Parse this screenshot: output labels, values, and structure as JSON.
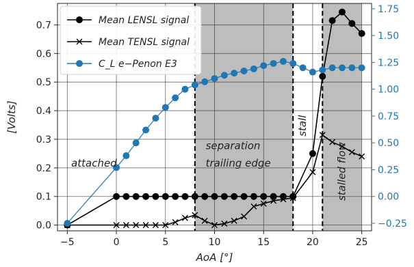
{
  "chart_data": {
    "type": "line",
    "xlabel": "AoA [°]",
    "ylabel": "[Volts]",
    "xlim": [
      -6,
      26
    ],
    "ylim": [
      -0.02,
      0.775
    ],
    "ylim_right": [
      -0.32,
      1.8
    ],
    "xticks": [
      -5,
      0,
      5,
      10,
      15,
      20,
      25
    ],
    "yticks": [
      0.0,
      0.1,
      0.2,
      0.3,
      0.4,
      0.5,
      0.6,
      0.7
    ],
    "yticks_right": [
      -0.25,
      0.0,
      0.25,
      0.5,
      0.75,
      1.0,
      1.25,
      1.5,
      1.75
    ],
    "ytick_labels": [
      "0.0",
      "0.1",
      "0.2",
      "0.3",
      "0.4",
      "0.5",
      "0.6",
      "0.7"
    ],
    "ytick_labels_right": [
      "−0.25",
      "0.00",
      "0.25",
      "0.50",
      "0.75",
      "1.00",
      "1.25",
      "1.50",
      "1.75"
    ],
    "grid": true,
    "legend_position": "top-left",
    "regions": [
      {
        "x0": 8,
        "x1": 18,
        "color": "#bdbdbd"
      },
      {
        "x0": 21,
        "x1": 25,
        "color": "#bdbdbd"
      }
    ],
    "vlines": [
      8,
      18,
      21
    ],
    "annotations": [
      {
        "id": "attached",
        "text": "attached",
        "x": -4.6,
        "y": 0.205,
        "rotate": 0
      },
      {
        "id": "sep1",
        "text": "separation",
        "x": 9.1,
        "y": 0.265,
        "rotate": 0
      },
      {
        "id": "sep2",
        "text": "trailing edge",
        "x": 9.1,
        "y": 0.205,
        "rotate": 0
      },
      {
        "id": "stall",
        "text": "stall",
        "x": 19.3,
        "y": 0.31,
        "rotate": -90
      },
      {
        "id": "stalled",
        "text": "stalled flow",
        "x": 23.3,
        "y": 0.085,
        "rotate": -90
      }
    ],
    "series": [
      {
        "name": "Mean LENSL signal",
        "axis": "left",
        "color": "#000000",
        "marker": "circle",
        "x": [
          -5,
          0,
          1,
          2,
          3,
          4,
          5,
          6,
          7,
          8,
          9,
          10,
          11,
          12,
          13,
          14,
          15,
          16,
          17,
          18,
          20,
          21,
          22,
          23,
          24,
          25
        ],
        "y": [
          0.0,
          0.1,
          0.1,
          0.1,
          0.1,
          0.1,
          0.1,
          0.1,
          0.1,
          0.1,
          0.1,
          0.1,
          0.1,
          0.1,
          0.1,
          0.1,
          0.1,
          0.1,
          0.1,
          0.1,
          0.25,
          0.52,
          0.715,
          0.745,
          0.705,
          0.67
        ]
      },
      {
        "name": "Mean TENSL signal",
        "axis": "left",
        "color": "#000000",
        "marker": "x",
        "x": [
          -5,
          0,
          1,
          2,
          3,
          4,
          5,
          6,
          7,
          8,
          9,
          10,
          11,
          12,
          13,
          14,
          15,
          16,
          17,
          18,
          20,
          21,
          22,
          23,
          24,
          25
        ],
        "y": [
          0.0,
          0.0,
          0.0,
          0.0,
          0.0,
          0.0,
          0.0,
          0.01,
          0.025,
          0.035,
          0.015,
          0.0,
          0.005,
          0.015,
          0.03,
          0.065,
          0.075,
          0.085,
          0.09,
          0.095,
          0.185,
          0.315,
          0.29,
          0.275,
          0.255,
          0.24
        ]
      },
      {
        "name": "C_L e−Penon E3",
        "axis": "right",
        "color": "#1f77b4",
        "marker": "circle",
        "x": [
          -5,
          0,
          1,
          2,
          3,
          4,
          5,
          6,
          7,
          8,
          9,
          10,
          11,
          12,
          13,
          14,
          15,
          16,
          17,
          18,
          19,
          20,
          21,
          22,
          23,
          24,
          25
        ],
        "y": [
          -0.25,
          0.27,
          0.38,
          0.5,
          0.62,
          0.73,
          0.83,
          0.92,
          1.0,
          1.04,
          1.07,
          1.1,
          1.13,
          1.15,
          1.17,
          1.19,
          1.22,
          1.24,
          1.26,
          1.24,
          1.2,
          1.16,
          1.18,
          1.2,
          1.2,
          1.2,
          1.2
        ]
      }
    ]
  }
}
